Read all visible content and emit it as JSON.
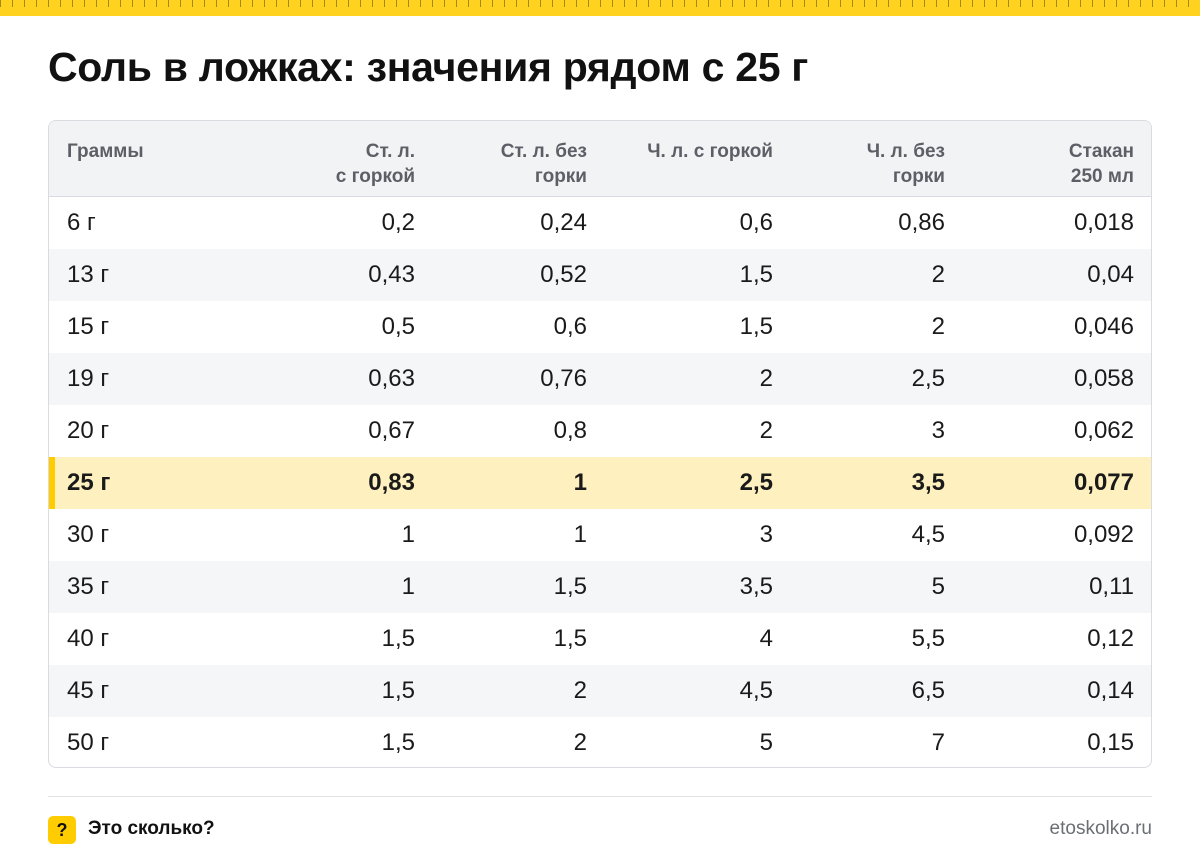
{
  "title": "Соль в ложках: значения рядом с 25 г",
  "table": {
    "columns": [
      [
        "Граммы"
      ],
      [
        "Ст. л.",
        "с горкой"
      ],
      [
        "Ст. л. без",
        "горки"
      ],
      [
        "Ч. л. с горкой"
      ],
      [
        "Ч. л. без",
        "горки"
      ],
      [
        "Стакан",
        "250 мл"
      ]
    ],
    "highlight_row": 5,
    "rows": [
      [
        "6 г",
        "0,2",
        "0,24",
        "0,6",
        "0,86",
        "0,018"
      ],
      [
        "13 г",
        "0,43",
        "0,52",
        "1,5",
        "2",
        "0,04"
      ],
      [
        "15 г",
        "0,5",
        "0,6",
        "1,5",
        "2",
        "0,046"
      ],
      [
        "19 г",
        "0,63",
        "0,76",
        "2",
        "2,5",
        "0,058"
      ],
      [
        "20 г",
        "0,67",
        "0,8",
        "2",
        "3",
        "0,062"
      ],
      [
        "25 г",
        "0,83",
        "1",
        "2,5",
        "3,5",
        "0,077"
      ],
      [
        "30 г",
        "1",
        "1",
        "3",
        "4,5",
        "0,092"
      ],
      [
        "35 г",
        "1",
        "1,5",
        "3,5",
        "5",
        "0,11"
      ],
      [
        "40 г",
        "1,5",
        "1,5",
        "4",
        "5,5",
        "0,12"
      ],
      [
        "45 г",
        "1,5",
        "2",
        "4,5",
        "6,5",
        "0,14"
      ],
      [
        "50 г",
        "1,5",
        "2",
        "5",
        "7",
        "0,15"
      ]
    ]
  },
  "footer": {
    "badge": "?",
    "brand": "Это сколько?",
    "url": "etoskolko.ru"
  },
  "colors": {
    "accent": "#ffcc00",
    "highlight_bg": "#fff1bf",
    "header_bg": "#f2f3f5"
  }
}
